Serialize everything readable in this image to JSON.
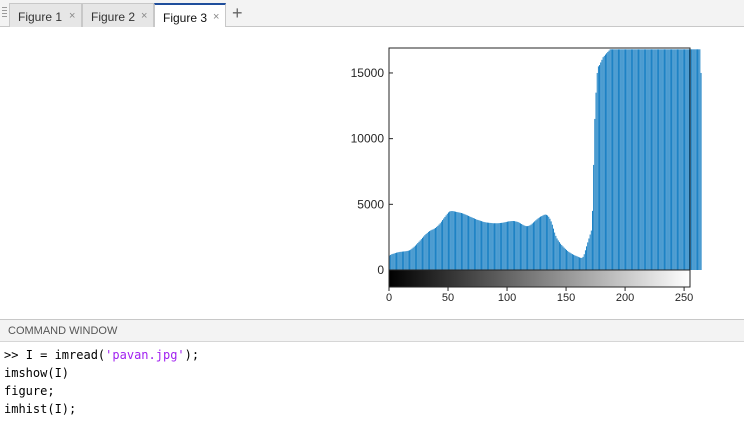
{
  "tabs": [
    {
      "label": "Figure 1",
      "close": "×",
      "active": false
    },
    {
      "label": "Figure 2",
      "close": "×",
      "active": false
    },
    {
      "label": "Figure 3",
      "close": "×",
      "active": true
    }
  ],
  "add_tab": "+",
  "command_window": {
    "title": "COMMAND WINDOW",
    "lines": [
      {
        "prompt": ">> ",
        "pre": "I = imread(",
        "string": "'pavan.jpg'",
        "post": ");"
      },
      {
        "prompt": "",
        "pre": "imshow(I)",
        "string": "",
        "post": ""
      },
      {
        "prompt": "",
        "pre": "figure;",
        "string": "",
        "post": ""
      },
      {
        "prompt": "",
        "pre": "imhist(I);",
        "string": "",
        "post": ""
      }
    ]
  },
  "colors": {
    "bar": "#0072bd",
    "string": "#a020f0",
    "active_tab": "#1f4e9c"
  },
  "chart_data": {
    "type": "bar",
    "title": "",
    "xlabel": "",
    "ylabel": "",
    "xlim": [
      0,
      255
    ],
    "ylim": [
      0,
      16900
    ],
    "xticks": [
      0,
      50,
      100,
      150,
      200,
      250
    ],
    "yticks": [
      0,
      5000,
      10000,
      15000
    ],
    "colorbar": "grayscale 0-255",
    "grid": false,
    "values": [
      1100,
      1150,
      1200,
      1230,
      1260,
      1290,
      1320,
      1340,
      1360,
      1380,
      1390,
      1400,
      1410,
      1420,
      1430,
      1450,
      1470,
      1500,
      1550,
      1620,
      1700,
      1780,
      1860,
      1950,
      2050,
      2150,
      2250,
      2350,
      2450,
      2550,
      2650,
      2740,
      2820,
      2900,
      2960,
      3010,
      3060,
      3100,
      3150,
      3200,
      3280,
      3360,
      3460,
      3560,
      3680,
      3800,
      3920,
      4040,
      4160,
      4280,
      4380,
      4450,
      4480,
      4490,
      4480,
      4460,
      4440,
      4420,
      4400,
      4380,
      4360,
      4340,
      4310,
      4280,
      4240,
      4200,
      4160,
      4120,
      4080,
      4040,
      4000,
      3960,
      3920,
      3880,
      3840,
      3810,
      3780,
      3750,
      3720,
      3690,
      3660,
      3640,
      3620,
      3610,
      3600,
      3590,
      3580,
      3570,
      3560,
      3560,
      3560,
      3560,
      3560,
      3570,
      3580,
      3590,
      3600,
      3620,
      3640,
      3660,
      3680,
      3700,
      3710,
      3720,
      3730,
      3730,
      3720,
      3700,
      3680,
      3650,
      3600,
      3550,
      3500,
      3450,
      3400,
      3360,
      3340,
      3340,
      3360,
      3400,
      3460,
      3540,
      3620,
      3700,
      3780,
      3860,
      3940,
      4000,
      4060,
      4100,
      4150,
      4200,
      4220,
      4200,
      4150,
      4050,
      3900,
      3700,
      3450,
      3150,
      2850,
      2600,
      2400,
      2250,
      2120,
      2000,
      1900,
      1800,
      1700,
      1610,
      1530,
      1450,
      1380,
      1320,
      1260,
      1210,
      1160,
      1120,
      1080,
      1040,
      1000,
      960,
      930,
      920,
      1000,
      1200,
      1500,
      1800,
      2100,
      2400,
      2700,
      3000,
      4500,
      8000,
      11500,
      13500,
      15000,
      15500,
      15600,
      15800,
      16000,
      16200,
      16300,
      16400,
      16500,
      16600,
      16700,
      16800,
      16800,
      16800,
      16800,
      16800,
      16800,
      16800,
      16800,
      16800,
      16800,
      16800,
      16800,
      16800,
      16800,
      16800,
      16800,
      16800,
      16800,
      16800,
      16800,
      16800,
      16800,
      16800,
      16800,
      16800,
      16800,
      16800,
      16800,
      16800,
      16800,
      16800,
      16800,
      16800,
      16800,
      16800,
      16800,
      16800,
      16800,
      16800,
      16800,
      16800,
      16800,
      16800,
      16800,
      16800,
      16800,
      16800,
      16800,
      16800,
      16800,
      16800,
      16800,
      16800,
      16800,
      16800,
      16800,
      16800,
      16800,
      16800,
      16800,
      16800,
      16800,
      16800,
      16800,
      16800,
      16800,
      16800,
      16800,
      16800,
      16800,
      16800,
      16800,
      16800,
      16800,
      16800,
      16800,
      16800,
      15000
    ]
  }
}
